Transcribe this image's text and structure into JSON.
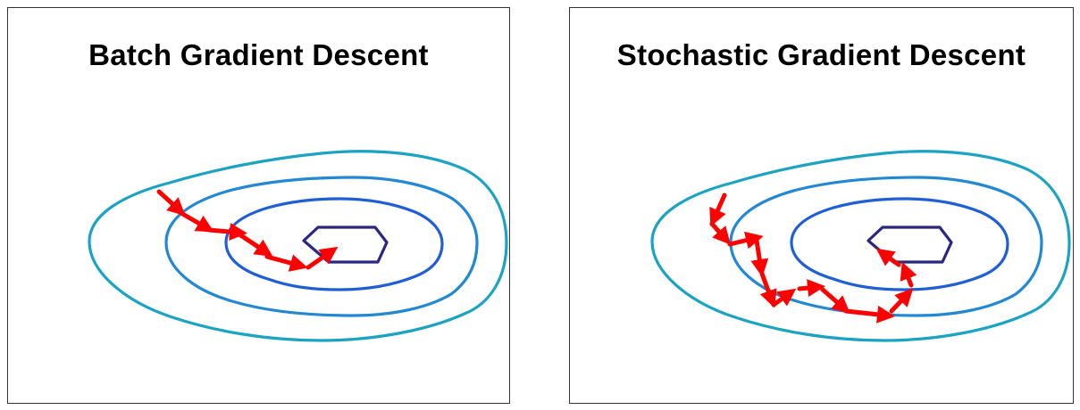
{
  "panels": [
    {
      "title": "Batch Gradient Descent"
    },
    {
      "title": "Stochastic Gradient Descent"
    }
  ],
  "colors": {
    "contour_outer": "#1aa3c2",
    "contour_second": "#2288d4",
    "contour_third": "#1f5fd6",
    "contour_inner": "#2b2680",
    "step_arrow": "#ff0000",
    "border": "#333333"
  },
  "icons": {
    "step_marker": "arrow-icon"
  }
}
